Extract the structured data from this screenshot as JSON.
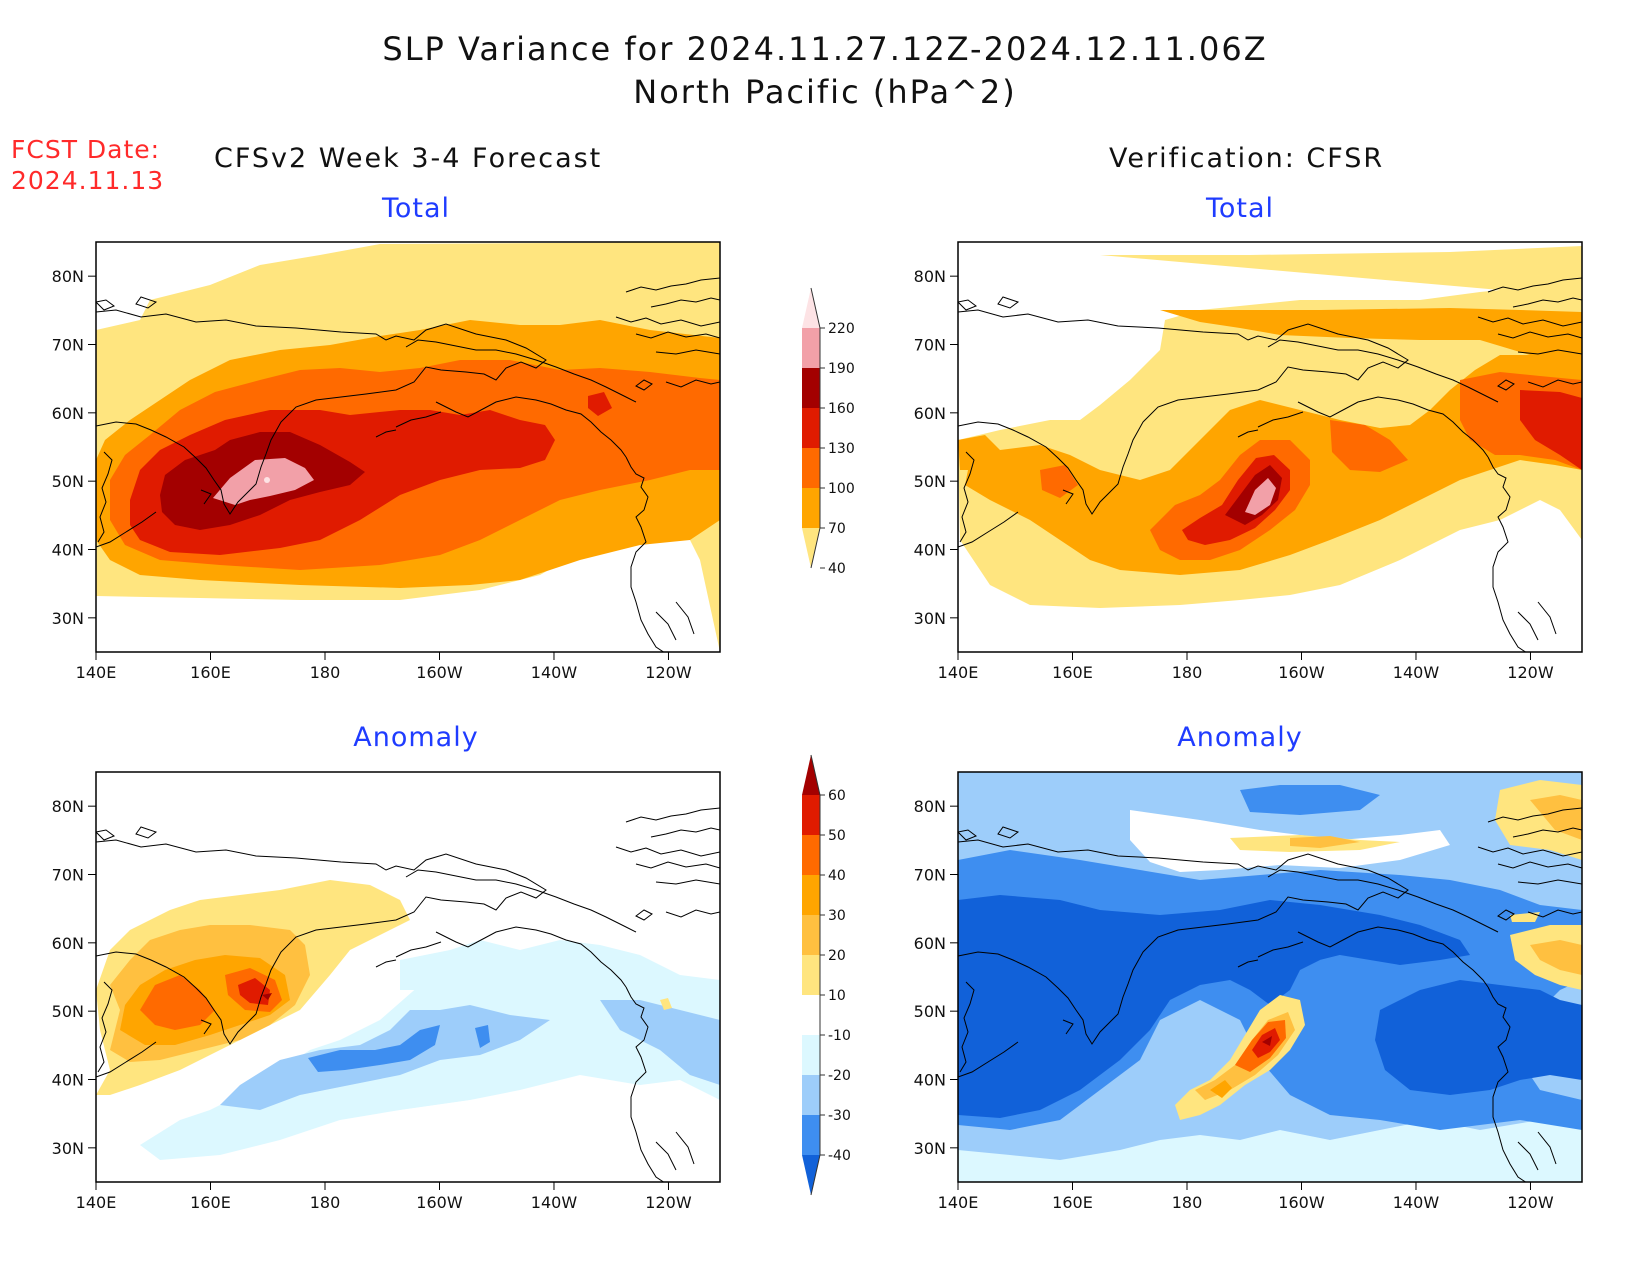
{
  "header": {
    "title_line1": "SLP Variance for 2024.11.27.12Z-2024.12.11.06Z",
    "title_line2": "North Pacific (hPa^2)",
    "fcst_label": "FCST Date:",
    "fcst_date": "2024.11.13",
    "left_heading": "CFSv2 Week 3-4 Forecast",
    "right_heading": "Verification: CFSR"
  },
  "panels": {
    "top_left": "Total",
    "top_right": "Total",
    "bottom_left": "Anomaly",
    "bottom_right": "Anomaly"
  },
  "axes": {
    "lat_labels": [
      "80N",
      "70N",
      "60N",
      "50N",
      "40N",
      "30N"
    ],
    "lat_values": [
      80,
      70,
      60,
      50,
      40,
      30
    ],
    "lon_labels": [
      "140E",
      "160E",
      "180",
      "160W",
      "140W",
      "120W"
    ],
    "lon_values": [
      140,
      160,
      180,
      200,
      220,
      240
    ],
    "lon_range": [
      140,
      249
    ],
    "lat_range": [
      25,
      85
    ]
  },
  "colorbars": {
    "total": {
      "labels": [
        "40",
        "70",
        "100",
        "130",
        "160",
        "190",
        "220"
      ],
      "colors": [
        "#ffe57f",
        "#ffa500",
        "#ff6a00",
        "#e01b00",
        "#a30000",
        "#f2a0a8",
        "#fde3e5"
      ]
    },
    "anomaly": {
      "labels": [
        "-40",
        "-30",
        "-20",
        "-10",
        "10",
        "20",
        "30",
        "40",
        "50",
        "60"
      ],
      "colors": [
        "#1161d9",
        "#3e8ef0",
        "#9dcdfa",
        "#dcf8ff",
        "#ffffff",
        "#ffe57f",
        "#ffc040",
        "#ffa500",
        "#ff6a00",
        "#e01b00",
        "#a30000"
      ]
    }
  },
  "palette": {
    "yellow": "#ffe57f",
    "orange": "#ffa500",
    "dark_orange": "#ff6a00",
    "red": "#e01b00",
    "dark_red": "#a30000",
    "pink": "#f2a0a8",
    "light_pink": "#fde3e5",
    "blue1": "#1161d9",
    "blue2": "#3e8ef0",
    "blue3": "#9dcdfa",
    "blue4": "#dcf8ff",
    "light_orange": "#ffc040"
  }
}
